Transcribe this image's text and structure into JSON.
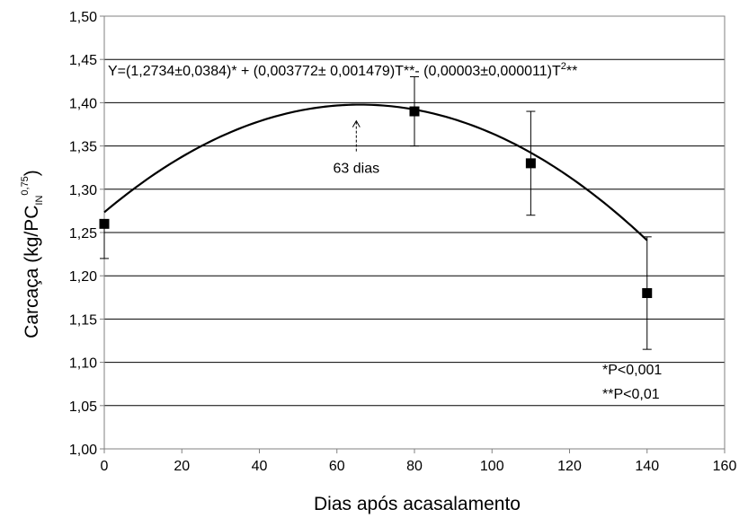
{
  "chart_data": {
    "type": "scatter",
    "xlabel": "Dias após acasalamento",
    "ylabel": {
      "main": "Carcaça (kg/PC",
      "subscript": "IN",
      "superscript": "0,75",
      "close": ")"
    },
    "xlim": [
      0,
      160
    ],
    "ylim": [
      1.0,
      1.5
    ],
    "x_ticks": [
      "0",
      "20",
      "40",
      "60",
      "80",
      "100",
      "120",
      "140",
      "160"
    ],
    "y_ticks": [
      "1,00",
      "1,05",
      "1,10",
      "1,15",
      "1,20",
      "1,25",
      "1,30",
      "1,35",
      "1,40",
      "1,45",
      "1,50"
    ],
    "grid": "horizontal",
    "points": [
      {
        "x": 0,
        "y": 1.26,
        "err_low": 1.22,
        "err_high": 1.26
      },
      {
        "x": 80,
        "y": 1.39,
        "err_low": 1.35,
        "err_high": 1.43
      },
      {
        "x": 110,
        "y": 1.33,
        "err_low": 1.27,
        "err_high": 1.39
      },
      {
        "x": 140,
        "y": 1.18,
        "err_low": 1.115,
        "err_high": 1.245
      }
    ],
    "fit_curve": {
      "type": "quadratic",
      "x_range": [
        0,
        140
      ],
      "coefficients": {
        "a": 1.2734,
        "b": 0.003772,
        "c": -2.86e-05
      }
    },
    "equation": {
      "main": "Y=(1,2734±0,0384)* + (0,003772± 0,001479)T**- (0,00003±0,000011)T",
      "sup": "2",
      "tail": "**"
    },
    "arrow_annotation": {
      "label": "63 dias",
      "x": 65
    },
    "significance_notes": [
      "*P<0,001",
      "**P<0,01"
    ]
  }
}
